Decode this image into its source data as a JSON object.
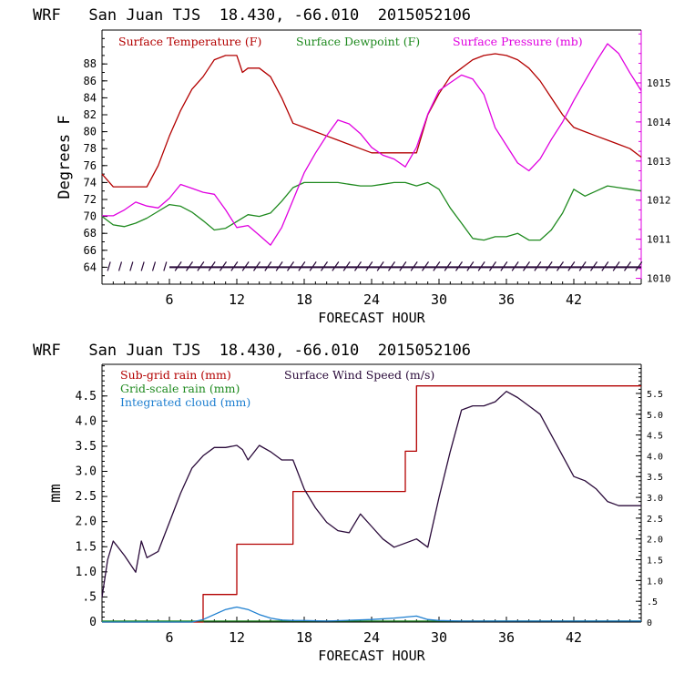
{
  "colors": {
    "temperature": "#b30000",
    "dewpoint": "#1f8a1f",
    "pressure": "#e000e0",
    "wind_speed": "#2a0a3a",
    "subgrid_rain": "#b30000",
    "gridscale_rain": "#1f8a1f",
    "cloud": "#1e7fd0",
    "axis": "#000000"
  },
  "chart_data": [
    {
      "type": "line",
      "title": "WRF   San Juan TJS  18.430, -66.010  2015052106",
      "xlabel": "FORECAST HOUR",
      "ylabel": "Degrees F",
      "x_ticks": [
        6,
        12,
        18,
        24,
        30,
        36,
        42
      ],
      "xlim": [
        0,
        48
      ],
      "y_left_ticks": [
        "64",
        "66",
        "68",
        "70",
        "72",
        "74",
        "76",
        "78",
        "80",
        "82",
        "84",
        "86",
        "88"
      ],
      "ylim_left": [
        62,
        92
      ],
      "y_right_ticks": [
        "1010",
        "1011",
        "1012",
        "1013",
        "1014",
        "1015"
      ],
      "ylim_right": [
        1009.85,
        1016.35
      ],
      "legend": [
        "Surface Temperature (F)",
        "Surface Dewpoint (F)",
        "Surface Pressure (mb)"
      ],
      "series": [
        {
          "name": "Surface Temperature (F)",
          "axis": "left",
          "x": [
            0,
            1,
            2,
            3,
            4,
            5,
            6,
            7,
            8,
            9,
            9.5,
            10,
            11,
            12,
            12.5,
            13,
            14,
            15,
            16,
            17,
            18,
            19,
            20,
            21,
            22,
            23,
            24,
            25,
            26,
            27,
            28,
            29,
            30,
            31,
            32,
            33,
            34,
            35,
            36,
            37,
            38,
            39,
            40,
            41,
            42,
            43,
            44,
            45,
            46,
            47,
            48
          ],
          "y": [
            75,
            73.5,
            73.5,
            73.5,
            73.5,
            76,
            79.5,
            82.5,
            85,
            86.5,
            87.5,
            88.5,
            89,
            89,
            87,
            87.5,
            87.5,
            86.5,
            84,
            81,
            80.5,
            80,
            79.5,
            79,
            78.5,
            78,
            77.5,
            77.5,
            77.5,
            77.5,
            77.5,
            82,
            84.5,
            86.5,
            87.5,
            88.5,
            89,
            89.2,
            89,
            88.5,
            87.5,
            86,
            84,
            82,
            80.5,
            80,
            79.5,
            79,
            78.5,
            78,
            77
          ]
        },
        {
          "name": "Surface Dewpoint (F)",
          "axis": "left",
          "x": [
            0,
            1,
            2,
            3,
            4,
            5,
            6,
            7,
            8,
            9,
            10,
            11,
            12,
            13,
            14,
            15,
            16,
            17,
            18,
            19,
            20,
            21,
            22,
            23,
            24,
            25,
            26,
            27,
            28,
            29,
            30,
            31,
            32,
            33,
            34,
            35,
            36,
            37,
            38,
            39,
            40,
            41,
            42,
            43,
            44,
            45,
            46,
            47,
            48
          ],
          "y": [
            70,
            69,
            68.8,
            69.2,
            69.8,
            70.6,
            71.4,
            71.2,
            70.5,
            69.5,
            68.4,
            68.6,
            69.4,
            70.2,
            70,
            70.4,
            71.8,
            73.4,
            74,
            74,
            74,
            74,
            73.8,
            73.6,
            73.6,
            73.8,
            74,
            74,
            73.6,
            74,
            73.2,
            71,
            69.2,
            67.4,
            67.2,
            67.6,
            67.6,
            68,
            67.2,
            67.2,
            68.4,
            70.4,
            73.2,
            72.4,
            73,
            73.6,
            73.4,
            73.2,
            73
          ]
        },
        {
          "name": "Surface Pressure (mb)",
          "axis": "right",
          "x": [
            0,
            1,
            2,
            3,
            4,
            5,
            6,
            7,
            8,
            9,
            10,
            11,
            12,
            13,
            14,
            15,
            16,
            17,
            18,
            19,
            20,
            21,
            22,
            23,
            24,
            25,
            26,
            27,
            28,
            29,
            30,
            31,
            32,
            33,
            34,
            35,
            36,
            37,
            38,
            39,
            40,
            41,
            42,
            43,
            44,
            45,
            46,
            47,
            48
          ],
          "y": [
            1011.6,
            1011.6,
            1011.75,
            1011.95,
            1011.85,
            1011.8,
            1012.05,
            1012.4,
            1012.3,
            1012.2,
            1012.15,
            1011.75,
            1011.3,
            1011.35,
            1011.1,
            1010.85,
            1011.3,
            1012.0,
            1012.7,
            1013.2,
            1013.65,
            1014.05,
            1013.95,
            1013.7,
            1013.35,
            1013.15,
            1013.05,
            1012.85,
            1013.35,
            1014.2,
            1014.8,
            1015.0,
            1015.2,
            1015.1,
            1014.7,
            1013.85,
            1013.4,
            1012.95,
            1012.75,
            1013.05,
            1013.55,
            1014.0,
            1014.55,
            1015.05,
            1015.55,
            1016.0,
            1015.75,
            1015.25,
            1014.8
          ]
        }
      ],
      "wind_barbs": "row of wind barbs along y = 64"
    },
    {
      "type": "line",
      "title": "WRF   San Juan TJS  18.430, -66.010  2015052106",
      "xlabel": "FORECAST HOUR",
      "ylabel": "mm",
      "x_ticks": [
        6,
        12,
        18,
        24,
        30,
        36,
        42
      ],
      "xlim": [
        0,
        48
      ],
      "y_left_ticks": [
        "0",
        ".5",
        "1.0",
        "1.5",
        "2.0",
        "2.5",
        "3.0",
        "3.5",
        "4.0",
        "4.5"
      ],
      "ylim_left": [
        0,
        5.13
      ],
      "y_right_ticks": [
        "0",
        ".5",
        "1.0",
        "1.5",
        "2.0",
        "2.5",
        "3.0",
        "3.5",
        "4.0",
        "4.5",
        "5.0",
        "5.5"
      ],
      "ylim_right": [
        0,
        6.2
      ],
      "legend": [
        "Sub-grid rain (mm)",
        "Grid-scale rain (mm)",
        "Integrated cloud (mm)",
        "Surface Wind Speed (m/s)"
      ],
      "series": [
        {
          "name": "Sub-grid rain (mm)",
          "axis": "left",
          "step": true,
          "x": [
            0,
            9,
            10,
            11,
            12,
            13,
            14,
            15,
            16,
            17,
            18,
            19,
            20,
            21,
            22,
            23,
            24,
            25,
            26,
            27,
            28,
            29,
            30,
            31,
            32,
            33,
            34,
            35,
            36,
            37,
            38,
            39,
            40,
            41,
            42,
            43,
            44,
            45,
            46,
            47,
            48
          ],
          "y": [
            0,
            0.55,
            0.55,
            0.55,
            1.55,
            1.55,
            1.55,
            1.55,
            1.55,
            2.6,
            2.6,
            2.6,
            2.6,
            2.6,
            2.6,
            2.6,
            2.6,
            2.6,
            2.6,
            3.4,
            4.7,
            4.7,
            4.7,
            4.7,
            4.7,
            4.7,
            4.7,
            4.7,
            4.7,
            4.7,
            4.7,
            4.7,
            4.7,
            4.7,
            4.7,
            4.7,
            4.7,
            4.7,
            4.7,
            4.7,
            4.7
          ]
        },
        {
          "name": "Grid-scale rain (mm)",
          "axis": "left",
          "x": [
            0,
            48
          ],
          "y": [
            0.02,
            0.02
          ]
        },
        {
          "name": "Integrated cloud (mm)",
          "axis": "left",
          "x": [
            0,
            8,
            9,
            10,
            11,
            12,
            13,
            14,
            15,
            16,
            17,
            18,
            20,
            24,
            26,
            27,
            28,
            29,
            30,
            32,
            36,
            40,
            44,
            48
          ],
          "y": [
            0,
            0,
            0.05,
            0.15,
            0.25,
            0.3,
            0.25,
            0.15,
            0.08,
            0.04,
            0.03,
            0.03,
            0.02,
            0.05,
            0.08,
            0.1,
            0.12,
            0.05,
            0.03,
            0.02,
            0.02,
            0.02,
            0.02,
            0.02
          ]
        },
        {
          "name": "Surface Wind Speed (m/s)",
          "axis": "right",
          "x": [
            0,
            0.5,
            1,
            2,
            3,
            3.5,
            4,
            5,
            6,
            7,
            8,
            9,
            10,
            11,
            12,
            12.5,
            13,
            14,
            15,
            16,
            17,
            18,
            19,
            20,
            21,
            22,
            23,
            24,
            25,
            26,
            27,
            28,
            29,
            30,
            31,
            32,
            33,
            34,
            35,
            36,
            37,
            38,
            39,
            40,
            41,
            42,
            43,
            44,
            45,
            46,
            47,
            48
          ],
          "y": [
            0.6,
            1.5,
            1.95,
            1.6,
            1.2,
            1.95,
            1.55,
            1.7,
            2.4,
            3.1,
            3.7,
            4.0,
            4.2,
            4.2,
            4.25,
            4.15,
            3.9,
            4.25,
            4.1,
            3.9,
            3.9,
            3.2,
            2.75,
            2.4,
            2.2,
            2.15,
            2.6,
            2.3,
            2.0,
            1.8,
            1.9,
            2.0,
            1.8,
            3.0,
            4.1,
            5.1,
            5.2,
            5.2,
            5.3,
            5.55,
            5.4,
            5.2,
            5.0,
            4.5,
            4.0,
            3.5,
            3.4,
            3.2,
            2.9,
            2.8,
            2.8,
            2.8
          ]
        }
      ]
    }
  ]
}
